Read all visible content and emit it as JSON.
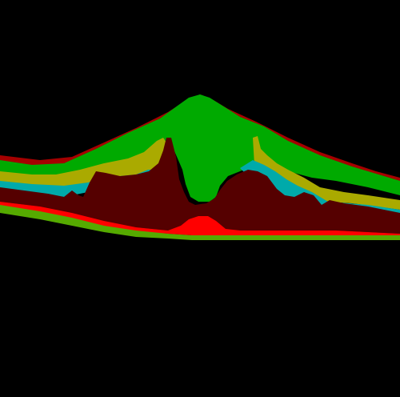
{
  "scan": {
    "background_color": "#000000",
    "layers": [
      {
        "name": "outer-band",
        "color": "#a50000"
      },
      {
        "name": "green-band",
        "color": "#00aa00"
      },
      {
        "name": "olive-band",
        "color": "#aaaa00"
      },
      {
        "name": "teal-band",
        "color": "#00aaaa"
      },
      {
        "name": "maroon-band",
        "color": "#550000"
      },
      {
        "name": "red-band",
        "color": "#ff0000"
      },
      {
        "name": "lime-band",
        "color": "#55aa00"
      }
    ]
  }
}
